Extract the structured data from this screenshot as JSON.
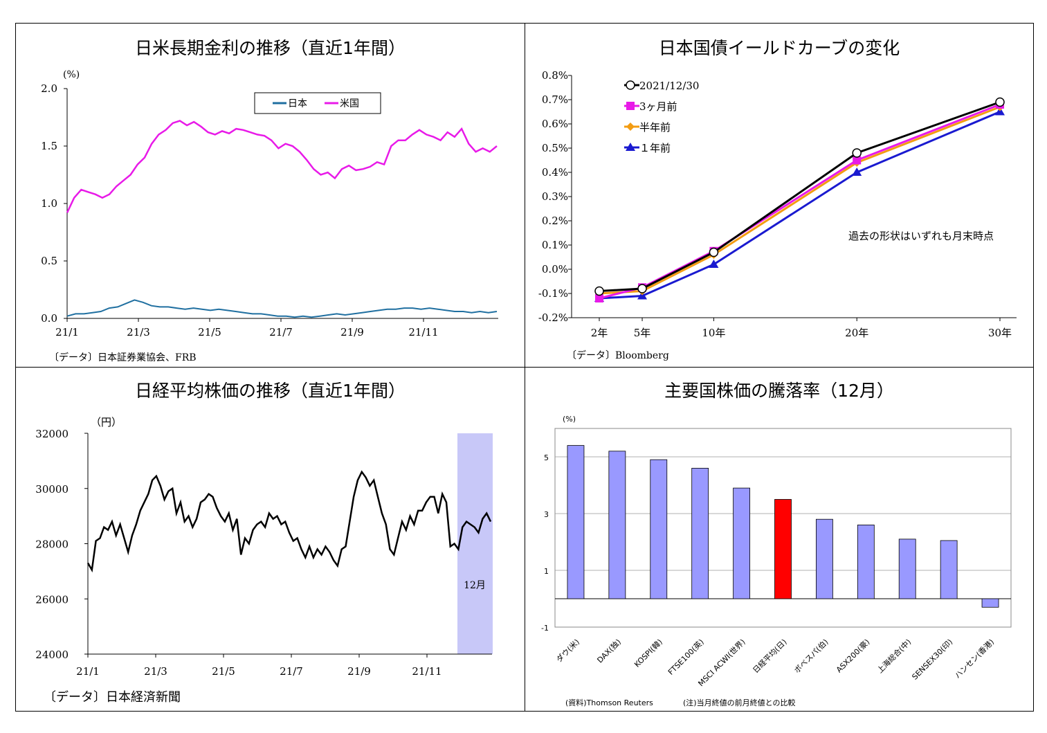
{
  "panels": {
    "p1": {
      "title": "日米長期金利の推移（直近1年間）",
      "source": "〔データ〕日本証券業協会、FRB",
      "unit": "(%)"
    },
    "p2": {
      "title": "日本国債イールドカーブの変化",
      "source": "〔データ〕Bloomberg",
      "annotation": "過去の形状はいずれも月末時点"
    },
    "p3": {
      "title": "日経平均株価の推移（直近1年間）",
      "source": "〔データ〕日本経済新聞",
      "unit": "（円）",
      "shade_label": "12月"
    },
    "p4": {
      "title": "主要国株価の騰落率（12月）",
      "unit": "(%)",
      "source": "(資料)Thomson Reuters",
      "note": "(注)当月終値の前月終値との比較"
    }
  },
  "chart_data": [
    {
      "type": "line",
      "title": "日米長期金利の推移（直近1年間）",
      "ylabel": "(%)",
      "ylim": [
        0,
        2.0
      ],
      "y_ticks": [
        "0.0",
        "0.5",
        "1.0",
        "1.5",
        "2.0"
      ],
      "x_ticks": [
        "21/1",
        "21/3",
        "21/5",
        "21/7",
        "21/9",
        "21/11"
      ],
      "legend": "top",
      "colors": {
        "japan": "#1f6fa0",
        "us": "#e81ae8"
      },
      "series": [
        {
          "name": "日本",
          "values": [
            0.02,
            0.04,
            0.04,
            0.05,
            0.06,
            0.09,
            0.1,
            0.13,
            0.16,
            0.14,
            0.11,
            0.1,
            0.1,
            0.09,
            0.08,
            0.09,
            0.08,
            0.07,
            0.08,
            0.07,
            0.06,
            0.05,
            0.04,
            0.04,
            0.03,
            0.02,
            0.02,
            0.01,
            0.02,
            0.01,
            0.02,
            0.03,
            0.04,
            0.03,
            0.04,
            0.05,
            0.06,
            0.07,
            0.08,
            0.08,
            0.09,
            0.09,
            0.08,
            0.09,
            0.08,
            0.07,
            0.06,
            0.06,
            0.05,
            0.06,
            0.05,
            0.06
          ]
        },
        {
          "name": "米国",
          "values": [
            0.92,
            1.05,
            1.12,
            1.1,
            1.08,
            1.05,
            1.08,
            1.15,
            1.2,
            1.25,
            1.34,
            1.4,
            1.52,
            1.6,
            1.64,
            1.7,
            1.72,
            1.68,
            1.71,
            1.67,
            1.62,
            1.6,
            1.63,
            1.61,
            1.65,
            1.64,
            1.62,
            1.6,
            1.59,
            1.55,
            1.48,
            1.52,
            1.5,
            1.45,
            1.38,
            1.3,
            1.25,
            1.27,
            1.22,
            1.3,
            1.33,
            1.29,
            1.3,
            1.32,
            1.36,
            1.34,
            1.5,
            1.55,
            1.55,
            1.6,
            1.64,
            1.6,
            1.58,
            1.55,
            1.62,
            1.58,
            1.65,
            1.52,
            1.45,
            1.48,
            1.45,
            1.5
          ]
        }
      ]
    },
    {
      "type": "line",
      "title": "日本国債イールドカーブの変化",
      "ylim": [
        -0.2,
        0.8
      ],
      "y_ticks": [
        "0.8%",
        "0.7%",
        "0.6%",
        "0.5%",
        "0.4%",
        "0.3%",
        "0.2%",
        "0.1%",
        "0.0%",
        "-0.1%",
        "-0.2%"
      ],
      "categories": [
        "2年",
        "5年",
        "10年",
        "20年",
        "30年"
      ],
      "x_positions": [
        2,
        5,
        10,
        20,
        30
      ],
      "legend": "top-left",
      "series": [
        {
          "name": "2021/12/30",
          "color": "#000000",
          "marker": "circle",
          "values": [
            -0.09,
            -0.08,
            0.07,
            0.48,
            0.69
          ]
        },
        {
          "name": "3ヶ月前",
          "color": "#e81ae8",
          "marker": "square",
          "values": [
            -0.12,
            -0.075,
            0.075,
            0.45,
            0.68
          ]
        },
        {
          "name": "半年前",
          "color": "#f39c12",
          "marker": "diamond",
          "values": [
            -0.1,
            -0.09,
            0.06,
            0.44,
            0.67
          ]
        },
        {
          "name": "１年前",
          "color": "#1a1ad0",
          "marker": "triangle",
          "values": [
            -0.12,
            -0.11,
            0.02,
            0.4,
            0.65
          ]
        }
      ]
    },
    {
      "type": "line",
      "title": "日経平均株価の推移（直近1年間）",
      "ylabel": "（円）",
      "ylim": [
        24000,
        32000
      ],
      "y_ticks": [
        "32000",
        "30000",
        "28000",
        "26000",
        "24000"
      ],
      "x_ticks": [
        "21/1",
        "21/3",
        "21/5",
        "21/7",
        "21/9",
        "21/11"
      ],
      "series": [
        {
          "name": "日経平均",
          "values": [
            27300,
            27050,
            28100,
            28200,
            28600,
            28500,
            28800,
            28300,
            28700,
            28200,
            27700,
            28300,
            28700,
            29200,
            29500,
            29800,
            30300,
            30450,
            30100,
            29600,
            29900,
            30000,
            29100,
            29500,
            28800,
            29000,
            28600,
            28900,
            29500,
            29600,
            29800,
            29700,
            29300,
            29000,
            28800,
            29100,
            28500,
            28900,
            27600,
            28200,
            28000,
            28500,
            28700,
            28800,
            28600,
            29100,
            28900,
            29000,
            28700,
            28800,
            28400,
            28100,
            28200,
            27800,
            27500,
            27900,
            27500,
            27800,
            27600,
            27900,
            27700,
            27400,
            27200,
            27800,
            27900,
            28800,
            29700,
            30300,
            30600,
            30400,
            30100,
            30300,
            29700,
            29100,
            28700,
            27800,
            27600,
            28200,
            28800,
            28500,
            29000,
            28700,
            29200,
            29200,
            29500,
            29700,
            29700,
            29100,
            29800,
            29500,
            27900,
            28000,
            27800,
            28600,
            28800,
            28700,
            28600,
            28400,
            28900,
            29100,
            28800
          ]
        }
      ],
      "shade": {
        "label": "12月"
      }
    },
    {
      "type": "bar",
      "title": "主要国株価の騰落率（12月）",
      "ylabel": "(%)",
      "ylim": [
        -1,
        6
      ],
      "y_ticks": [
        "5",
        "3",
        "1",
        "-1"
      ],
      "categories": [
        "ダウ(米)",
        "DAX(独)",
        "KOSPI(韓)",
        "FTSE100(英)",
        "MSCI ACWI(世界)",
        "日経平均(日)",
        "ボベスパ(伯)",
        "ASX200(豪)",
        "上海総合(中)",
        "SENSEX30(印)",
        "ハンセン(香港)"
      ],
      "values": [
        5.4,
        5.2,
        4.9,
        4.6,
        3.9,
        3.5,
        2.8,
        2.6,
        2.1,
        2.05,
        -0.3
      ],
      "colors": {
        "default": "#9999ff",
        "highlight": "#ff0000"
      },
      "highlight_index": 5
    }
  ]
}
